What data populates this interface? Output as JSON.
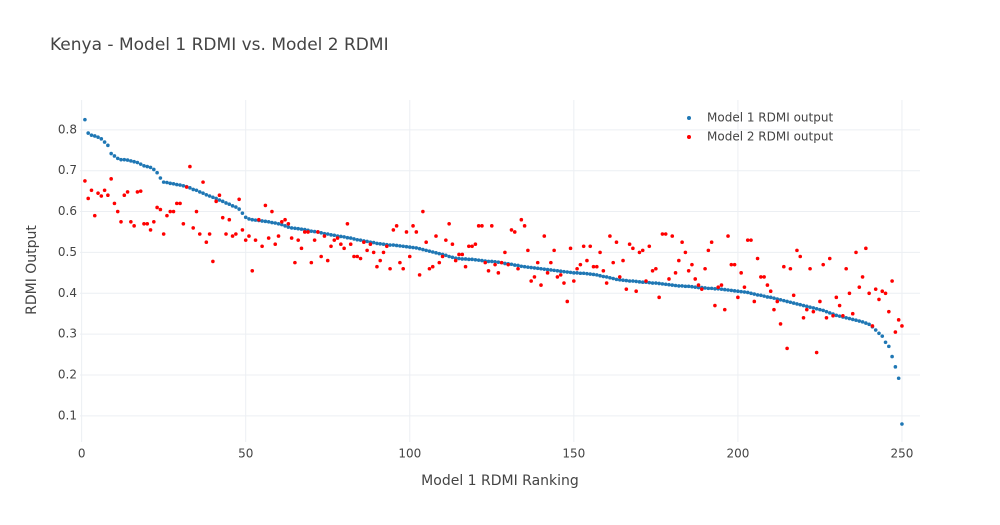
{
  "chart_data": {
    "type": "scatter",
    "title": "Kenya - Model 1 RDMI vs. Model 2 RDMI",
    "x_label": "Model 1 RDMI Ranking",
    "y_label": "RDMI Output",
    "xlim": [
      -0.5,
      255.5
    ],
    "ylim": [
      0.036,
      0.873
    ],
    "xticks": [
      0,
      50,
      100,
      150,
      200,
      250
    ],
    "yticks": [
      0.1,
      0.2,
      0.3,
      0.4,
      0.5,
      0.6,
      0.7,
      0.8
    ],
    "grid": true,
    "legend": "top right",
    "x": [
      1,
      2,
      3,
      4,
      5,
      6,
      7,
      8,
      9,
      10,
      11,
      12,
      13,
      14,
      15,
      16,
      17,
      18,
      19,
      20,
      21,
      22,
      23,
      24,
      25,
      26,
      27,
      28,
      29,
      30,
      31,
      32,
      33,
      34,
      35,
      36,
      37,
      38,
      39,
      40,
      41,
      42,
      43,
      44,
      45,
      46,
      47,
      48,
      49,
      50,
      51,
      52,
      53,
      54,
      55,
      56,
      57,
      58,
      59,
      60,
      61,
      62,
      63,
      64,
      65,
      66,
      67,
      68,
      69,
      70,
      71,
      72,
      73,
      74,
      75,
      76,
      77,
      78,
      79,
      80,
      81,
      82,
      83,
      84,
      85,
      86,
      87,
      88,
      89,
      90,
      91,
      92,
      93,
      94,
      95,
      96,
      97,
      98,
      99,
      100,
      101,
      102,
      103,
      104,
      105,
      106,
      107,
      108,
      109,
      110,
      111,
      112,
      113,
      114,
      115,
      116,
      117,
      118,
      119,
      120,
      121,
      122,
      123,
      124,
      125,
      126,
      127,
      128,
      129,
      130,
      131,
      132,
      133,
      134,
      135,
      136,
      137,
      138,
      139,
      140,
      141,
      142,
      143,
      144,
      145,
      146,
      147,
      148,
      149,
      150,
      151,
      152,
      153,
      154,
      155,
      156,
      157,
      158,
      159,
      160,
      161,
      162,
      163,
      164,
      165,
      166,
      167,
      168,
      169,
      170,
      171,
      172,
      173,
      174,
      175,
      176,
      177,
      178,
      179,
      180,
      181,
      182,
      183,
      184,
      185,
      186,
      187,
      188,
      189,
      190,
      191,
      192,
      193,
      194,
      195,
      196,
      197,
      198,
      199,
      200,
      201,
      202,
      203,
      204,
      205,
      206,
      207,
      208,
      209,
      210,
      211,
      212,
      213,
      214,
      215,
      216,
      217,
      218,
      219,
      220,
      221,
      222,
      223,
      224,
      225,
      226,
      227,
      228,
      229,
      230,
      231,
      232,
      233,
      234,
      235,
      236,
      237,
      238,
      239,
      240,
      241,
      242,
      243,
      244,
      245,
      246,
      247,
      248,
      249,
      250
    ],
    "series": [
      {
        "name": "Model 1 RDMI output",
        "color": "#1f77b4",
        "values": [
          0.825,
          0.792,
          0.787,
          0.785,
          0.782,
          0.778,
          0.77,
          0.762,
          0.742,
          0.736,
          0.73,
          0.727,
          0.727,
          0.726,
          0.724,
          0.722,
          0.72,
          0.716,
          0.712,
          0.71,
          0.708,
          0.703,
          0.695,
          0.682,
          0.672,
          0.671,
          0.669,
          0.668,
          0.666,
          0.665,
          0.663,
          0.661,
          0.658,
          0.654,
          0.652,
          0.648,
          0.645,
          0.641,
          0.638,
          0.635,
          0.632,
          0.628,
          0.625,
          0.621,
          0.618,
          0.614,
          0.611,
          0.606,
          0.596,
          0.586,
          0.582,
          0.58,
          0.579,
          0.578,
          0.577,
          0.576,
          0.575,
          0.573,
          0.572,
          0.57,
          0.568,
          0.565,
          0.562,
          0.56,
          0.559,
          0.558,
          0.557,
          0.556,
          0.554,
          0.552,
          0.551,
          0.55,
          0.548,
          0.546,
          0.545,
          0.543,
          0.542,
          0.54,
          0.539,
          0.538,
          0.536,
          0.535,
          0.533,
          0.531,
          0.53,
          0.528,
          0.527,
          0.525,
          0.524,
          0.522,
          0.521,
          0.52,
          0.519,
          0.518,
          0.518,
          0.517,
          0.516,
          0.515,
          0.514,
          0.513,
          0.512,
          0.511,
          0.509,
          0.507,
          0.505,
          0.503,
          0.501,
          0.499,
          0.497,
          0.495,
          0.493,
          0.49,
          0.488,
          0.486,
          0.485,
          0.484,
          0.484,
          0.483,
          0.483,
          0.482,
          0.481,
          0.48,
          0.479,
          0.478,
          0.478,
          0.477,
          0.476,
          0.475,
          0.473,
          0.472,
          0.471,
          0.469,
          0.468,
          0.466,
          0.465,
          0.464,
          0.463,
          0.462,
          0.461,
          0.46,
          0.459,
          0.458,
          0.457,
          0.456,
          0.455,
          0.454,
          0.453,
          0.452,
          0.451,
          0.45,
          0.45,
          0.449,
          0.449,
          0.448,
          0.447,
          0.446,
          0.445,
          0.443,
          0.441,
          0.44,
          0.438,
          0.436,
          0.434,
          0.433,
          0.432,
          0.431,
          0.43,
          0.43,
          0.429,
          0.428,
          0.427,
          0.427,
          0.426,
          0.425,
          0.425,
          0.424,
          0.423,
          0.422,
          0.421,
          0.42,
          0.419,
          0.418,
          0.418,
          0.417,
          0.417,
          0.416,
          0.415,
          0.414,
          0.414,
          0.413,
          0.412,
          0.412,
          0.411,
          0.411,
          0.41,
          0.409,
          0.408,
          0.407,
          0.406,
          0.405,
          0.404,
          0.403,
          0.402,
          0.4,
          0.398,
          0.396,
          0.395,
          0.393,
          0.391,
          0.39,
          0.388,
          0.386,
          0.384,
          0.382,
          0.38,
          0.378,
          0.376,
          0.374,
          0.372,
          0.37,
          0.368,
          0.366,
          0.364,
          0.362,
          0.36,
          0.358,
          0.355,
          0.352,
          0.349,
          0.346,
          0.344,
          0.342,
          0.34,
          0.338,
          0.336,
          0.334,
          0.332,
          0.33,
          0.327,
          0.324,
          0.318,
          0.31,
          0.302,
          0.295,
          0.28,
          0.27,
          0.245,
          0.22,
          0.192,
          0.08
        ]
      },
      {
        "name": "Model 2 RDMI output",
        "color": "#ff0000",
        "values": [
          0.675,
          0.632,
          0.652,
          0.59,
          0.645,
          0.638,
          0.652,
          0.64,
          0.68,
          0.62,
          0.6,
          0.575,
          0.64,
          0.648,
          0.575,
          0.565,
          0.648,
          0.65,
          0.57,
          0.57,
          0.555,
          0.575,
          0.61,
          0.605,
          0.545,
          0.59,
          0.6,
          0.6,
          0.62,
          0.62,
          0.57,
          0.66,
          0.71,
          0.56,
          0.6,
          0.545,
          0.672,
          0.525,
          0.545,
          0.478,
          0.625,
          0.64,
          0.585,
          0.545,
          0.58,
          0.54,
          0.545,
          0.63,
          0.555,
          0.53,
          0.54,
          0.455,
          0.53,
          0.58,
          0.515,
          0.615,
          0.535,
          0.6,
          0.52,
          0.54,
          0.575,
          0.58,
          0.57,
          0.535,
          0.475,
          0.53,
          0.51,
          0.55,
          0.55,
          0.475,
          0.53,
          0.55,
          0.49,
          0.54,
          0.48,
          0.515,
          0.53,
          0.535,
          0.52,
          0.51,
          0.57,
          0.52,
          0.49,
          0.49,
          0.485,
          0.525,
          0.505,
          0.52,
          0.5,
          0.465,
          0.48,
          0.5,
          0.515,
          0.46,
          0.555,
          0.565,
          0.475,
          0.46,
          0.55,
          0.49,
          0.565,
          0.55,
          0.445,
          0.6,
          0.525,
          0.46,
          0.465,
          0.54,
          0.475,
          0.49,
          0.53,
          0.57,
          0.52,
          0.48,
          0.495,
          0.495,
          0.465,
          0.515,
          0.515,
          0.52,
          0.565,
          0.565,
          0.475,
          0.455,
          0.565,
          0.47,
          0.45,
          0.475,
          0.5,
          0.47,
          0.555,
          0.55,
          0.46,
          0.58,
          0.565,
          0.505,
          0.43,
          0.44,
          0.475,
          0.42,
          0.54,
          0.45,
          0.475,
          0.505,
          0.44,
          0.445,
          0.425,
          0.38,
          0.51,
          0.43,
          0.46,
          0.47,
          0.515,
          0.48,
          0.515,
          0.465,
          0.465,
          0.5,
          0.455,
          0.425,
          0.54,
          0.475,
          0.525,
          0.44,
          0.48,
          0.41,
          0.52,
          0.51,
          0.405,
          0.5,
          0.505,
          0.43,
          0.515,
          0.455,
          0.46,
          0.39,
          0.545,
          0.545,
          0.435,
          0.54,
          0.45,
          0.48,
          0.525,
          0.5,
          0.455,
          0.47,
          0.435,
          0.42,
          0.41,
          0.46,
          0.505,
          0.525,
          0.37,
          0.415,
          0.42,
          0.36,
          0.54,
          0.47,
          0.47,
          0.39,
          0.45,
          0.415,
          0.53,
          0.53,
          0.38,
          0.485,
          0.44,
          0.44,
          0.42,
          0.405,
          0.36,
          0.38,
          0.325,
          0.465,
          0.265,
          0.46,
          0.395,
          0.505,
          0.49,
          0.34,
          0.36,
          0.46,
          0.355,
          0.255,
          0.38,
          0.47,
          0.34,
          0.485,
          0.345,
          0.39,
          0.37,
          0.345,
          0.46,
          0.4,
          0.35,
          0.5,
          0.415,
          0.44,
          0.51,
          0.4,
          0.32,
          0.41,
          0.385,
          0.405,
          0.4,
          0.355,
          0.43,
          0.305,
          0.335,
          0.32
        ]
      }
    ]
  }
}
